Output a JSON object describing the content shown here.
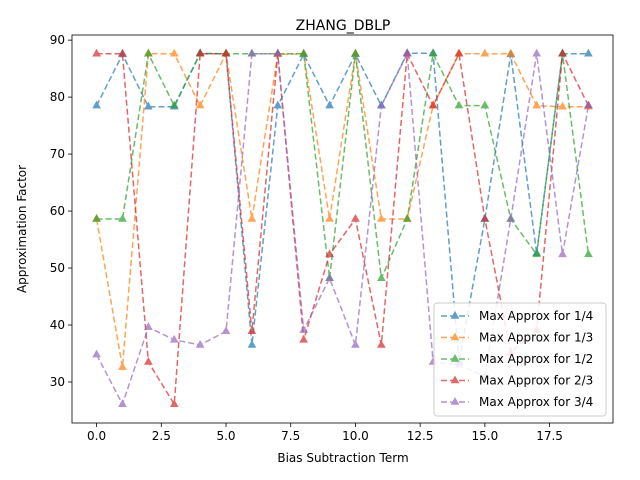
{
  "chart_data": {
    "type": "line",
    "title": "ZHANG_DBLP",
    "xlabel": "Bias Subtraction Term",
    "ylabel": "Approximation Factor",
    "xlim": [
      -0.95,
      19.95
    ],
    "ylim": [
      22.8,
      90.9
    ],
    "x_ticks": [
      0.0,
      2.5,
      5.0,
      7.5,
      10.0,
      12.5,
      15.0,
      17.5
    ],
    "x_tick_labels": [
      "0.0",
      "2.5",
      "5.0",
      "7.5",
      "10.0",
      "12.5",
      "15.0",
      "17.5"
    ],
    "y_ticks": [
      30,
      40,
      50,
      60,
      70,
      80,
      90
    ],
    "y_tick_labels": [
      "30",
      "40",
      "50",
      "60",
      "70",
      "80",
      "90"
    ],
    "grid": false,
    "legend_position": "lower-right",
    "marker": "triangle-up",
    "line_style": "dashed",
    "x": [
      0,
      1,
      2,
      3,
      4,
      5,
      6,
      7,
      8,
      9,
      10,
      11,
      12,
      13,
      14,
      15,
      16,
      17,
      18,
      19
    ],
    "series": [
      {
        "name": "Max Approx for 1/4",
        "color": "#1f77b4",
        "values": [
          78.5,
          87.5,
          78.3,
          78.3,
          87.7,
          87.6,
          36.5,
          78.5,
          87.5,
          78.5,
          87.5,
          78.5,
          87.7,
          87.7,
          33.5,
          58.6,
          87.5,
          52.6,
          87.6,
          87.6
        ]
      },
      {
        "name": "Max Approx for 1/3",
        "color": "#ff7f0e",
        "values": [
          58.6,
          32.6,
          87.6,
          87.6,
          78.5,
          87.6,
          58.6,
          87.5,
          87.6,
          58.6,
          87.6,
          58.6,
          58.6,
          78.5,
          87.6,
          87.6,
          87.6,
          78.5,
          78.3,
          78.3
        ]
      },
      {
        "name": "Max Approx for 1/2",
        "color": "#2ca02c",
        "values": [
          58.6,
          58.6,
          87.6,
          78.5,
          87.6,
          87.6,
          87.6,
          87.6,
          87.6,
          48.2,
          87.6,
          48.2,
          58.6,
          87.6,
          78.5,
          78.5,
          58.6,
          52.4,
          87.6,
          52.4
        ]
      },
      {
        "name": "Max Approx for 2/3",
        "color": "#d62728",
        "values": [
          87.6,
          87.6,
          33.5,
          26.1,
          87.6,
          87.6,
          38.9,
          87.6,
          37.4,
          52.4,
          58.6,
          36.5,
          87.6,
          78.5,
          87.6,
          58.6,
          35.2,
          39.1,
          87.6,
          78.5
        ]
      },
      {
        "name": "Max Approx for 3/4",
        "color": "#9467bd",
        "values": [
          34.8,
          26.1,
          39.6,
          37.4,
          36.5,
          38.9,
          87.6,
          87.6,
          39.1,
          48.2,
          36.5,
          78.5,
          87.6,
          33.5,
          33.0,
          31.0,
          58.6,
          87.6,
          52.4,
          78.5
        ]
      }
    ]
  }
}
